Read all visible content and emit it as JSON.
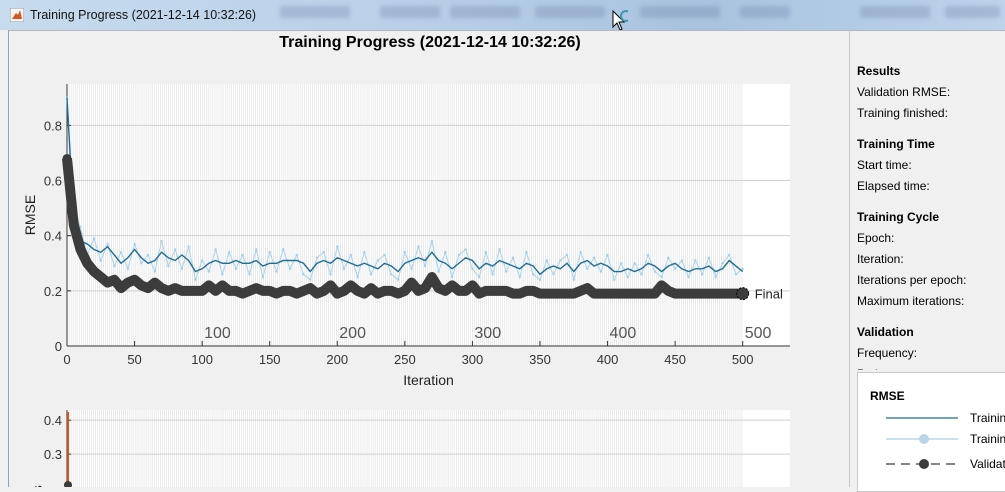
{
  "window": {
    "title": "Training Progress (2021-12-14 10:32:26)"
  },
  "figure": {
    "title": "Training Progress (2021-12-14 10:32:26)"
  },
  "side_panel": {
    "sections": [
      {
        "heading": "Results",
        "rows": [
          "Validation RMSE:",
          "Training finished:"
        ]
      },
      {
        "heading": "Training Time",
        "rows": [
          "Start time:",
          "Elapsed time:"
        ]
      },
      {
        "heading": "Training Cycle",
        "rows": [
          "Epoch:",
          "Iteration:",
          "Iterations per epoch:",
          "Maximum iterations:"
        ]
      },
      {
        "heading": "Validation",
        "rows": [
          "Frequency:",
          "Patience:"
        ]
      }
    ]
  },
  "legend": {
    "title": "RMSE",
    "items": [
      {
        "label": "Trainin",
        "style": "solid",
        "color": "#1f6e96"
      },
      {
        "label": "Trainin",
        "style": "solid-marker",
        "color": "#a9cfe3"
      },
      {
        "label": "Validat",
        "style": "dashed-marker",
        "color": "#3c3c3c"
      }
    ]
  },
  "colors": {
    "smoothed": "#1f6e96",
    "raw": "#9fd0ea",
    "validation": "#3c3c3c",
    "loss": "#d9541a",
    "epoch_lines": "#d6d6d6"
  },
  "chart_data": [
    {
      "type": "line",
      "ylabel": "RMSE",
      "xlabel": "Iteration",
      "xlim": [
        0,
        535
      ],
      "ylim": [
        0,
        0.95
      ],
      "xticks": [
        0,
        50,
        100,
        150,
        200,
        250,
        300,
        350,
        400,
        450,
        500
      ],
      "yticks": [
        0,
        0.2,
        0.4,
        0.6,
        0.8
      ],
      "grid": true,
      "epoch_labels": [
        100,
        200,
        300,
        400,
        500
      ],
      "epoch_count": 500,
      "final_label": "Final",
      "x": [
        0,
        5,
        10,
        15,
        20,
        25,
        30,
        35,
        40,
        45,
        50,
        55,
        60,
        65,
        70,
        75,
        80,
        85,
        90,
        95,
        100,
        105,
        110,
        115,
        120,
        125,
        130,
        135,
        140,
        145,
        150,
        155,
        160,
        165,
        170,
        175,
        180,
        185,
        190,
        195,
        200,
        205,
        210,
        215,
        220,
        225,
        230,
        235,
        240,
        245,
        250,
        255,
        260,
        265,
        270,
        275,
        280,
        285,
        290,
        295,
        300,
        305,
        310,
        315,
        320,
        325,
        330,
        335,
        340,
        345,
        350,
        355,
        360,
        365,
        370,
        375,
        380,
        385,
        390,
        395,
        400,
        405,
        410,
        415,
        420,
        425,
        430,
        435,
        440,
        445,
        450,
        455,
        460,
        465,
        470,
        475,
        480,
        485,
        490,
        495,
        500
      ],
      "series": [
        {
          "key": "raw",
          "values": [
            0.9,
            0.5,
            0.43,
            0.33,
            0.39,
            0.31,
            0.37,
            0.29,
            0.34,
            0.28,
            0.37,
            0.3,
            0.33,
            0.27,
            0.38,
            0.29,
            0.35,
            0.28,
            0.36,
            0.24,
            0.31,
            0.27,
            0.35,
            0.26,
            0.34,
            0.28,
            0.33,
            0.26,
            0.35,
            0.25,
            0.34,
            0.27,
            0.35,
            0.28,
            0.33,
            0.26,
            0.24,
            0.32,
            0.34,
            0.26,
            0.36,
            0.28,
            0.33,
            0.25,
            0.34,
            0.26,
            0.31,
            0.33,
            0.26,
            0.24,
            0.34,
            0.28,
            0.36,
            0.29,
            0.38,
            0.27,
            0.34,
            0.25,
            0.33,
            0.35,
            0.28,
            0.25,
            0.34,
            0.26,
            0.35,
            0.27,
            0.32,
            0.25,
            0.34,
            0.26,
            0.24,
            0.31,
            0.26,
            0.31,
            0.33,
            0.24,
            0.34,
            0.28,
            0.32,
            0.27,
            0.33,
            0.24,
            0.3,
            0.25,
            0.3,
            0.26,
            0.33,
            0.27,
            0.25,
            0.32,
            0.28,
            0.31,
            0.25,
            0.31,
            0.26,
            0.32,
            0.25,
            0.3,
            0.33,
            0.26,
            0.28
          ]
        },
        {
          "key": "smoothed",
          "values": [
            0.9,
            0.45,
            0.38,
            0.37,
            0.35,
            0.34,
            0.36,
            0.33,
            0.3,
            0.32,
            0.35,
            0.32,
            0.3,
            0.31,
            0.34,
            0.32,
            0.31,
            0.33,
            0.31,
            0.27,
            0.28,
            0.3,
            0.31,
            0.3,
            0.3,
            0.31,
            0.3,
            0.3,
            0.31,
            0.29,
            0.3,
            0.3,
            0.31,
            0.31,
            0.31,
            0.3,
            0.27,
            0.3,
            0.31,
            0.3,
            0.32,
            0.31,
            0.3,
            0.29,
            0.3,
            0.29,
            0.28,
            0.3,
            0.29,
            0.27,
            0.3,
            0.31,
            0.32,
            0.31,
            0.34,
            0.31,
            0.3,
            0.28,
            0.3,
            0.32,
            0.31,
            0.28,
            0.3,
            0.29,
            0.31,
            0.3,
            0.29,
            0.28,
            0.3,
            0.29,
            0.26,
            0.28,
            0.29,
            0.28,
            0.3,
            0.27,
            0.3,
            0.31,
            0.29,
            0.3,
            0.29,
            0.27,
            0.27,
            0.28,
            0.27,
            0.28,
            0.3,
            0.29,
            0.27,
            0.29,
            0.3,
            0.28,
            0.27,
            0.28,
            0.28,
            0.29,
            0.27,
            0.28,
            0.31,
            0.29,
            0.27
          ]
        },
        {
          "key": "validation",
          "values": [
            0.68,
            0.44,
            0.35,
            0.3,
            0.27,
            0.25,
            0.23,
            0.24,
            0.21,
            0.23,
            0.24,
            0.22,
            0.21,
            0.23,
            0.21,
            0.2,
            0.21,
            0.2,
            0.2,
            0.2,
            0.2,
            0.22,
            0.2,
            0.22,
            0.2,
            0.2,
            0.19,
            0.2,
            0.21,
            0.2,
            0.2,
            0.19,
            0.2,
            0.2,
            0.19,
            0.2,
            0.21,
            0.19,
            0.2,
            0.22,
            0.19,
            0.2,
            0.22,
            0.2,
            0.19,
            0.21,
            0.19,
            0.2,
            0.2,
            0.19,
            0.2,
            0.23,
            0.2,
            0.21,
            0.25,
            0.21,
            0.2,
            0.22,
            0.2,
            0.2,
            0.22,
            0.19,
            0.2,
            0.2,
            0.2,
            0.2,
            0.19,
            0.19,
            0.2,
            0.2,
            0.19,
            0.19,
            0.19,
            0.19,
            0.19,
            0.19,
            0.2,
            0.21,
            0.19,
            0.19,
            0.19,
            0.19,
            0.19,
            0.19,
            0.19,
            0.19,
            0.19,
            0.19,
            0.22,
            0.2,
            0.19,
            0.19,
            0.19,
            0.19,
            0.19,
            0.19,
            0.19,
            0.19,
            0.19,
            0.19,
            0.19
          ]
        }
      ]
    },
    {
      "type": "line",
      "ylabel": "Loss",
      "ylim": [
        0.1,
        0.43
      ],
      "yticks": [
        0.3,
        0.4
      ],
      "grid": true
    }
  ]
}
